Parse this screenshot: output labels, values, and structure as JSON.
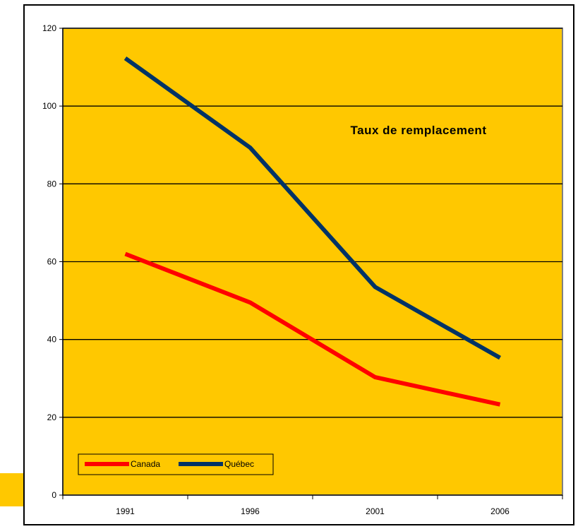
{
  "chart_data": {
    "type": "line",
    "title": "Taux de remplacement",
    "xlabel": "",
    "ylabel": "",
    "categories": [
      "1991",
      "1996",
      "2001",
      "2006"
    ],
    "ylim": [
      0,
      120
    ],
    "yticks": [
      0,
      20,
      40,
      60,
      80,
      100,
      120
    ],
    "ytick_labels": [
      "0",
      "20",
      "40",
      "60",
      "80",
      "100",
      "120"
    ],
    "grid": true,
    "legend_position": "bottom-left",
    "plot_background": "#FFC800",
    "series": [
      {
        "name": "Canada",
        "color": "#FF0000",
        "values": [
          62,
          49.5,
          30.3,
          23.3
        ]
      },
      {
        "name": "Québec",
        "color": "#003366",
        "values": [
          112.3,
          89.3,
          53.5,
          35.3
        ]
      }
    ]
  },
  "decor": {
    "side_tab_color": "#FFC800"
  }
}
